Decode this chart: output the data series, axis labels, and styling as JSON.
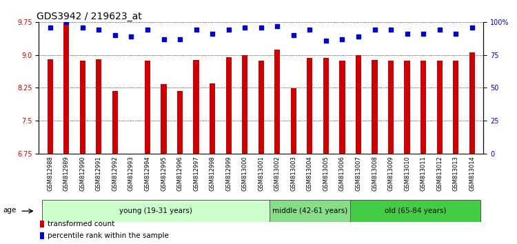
{
  "title": "GDS3942 / 219623_at",
  "samples": [
    "GSM812988",
    "GSM812989",
    "GSM812990",
    "GSM812991",
    "GSM812992",
    "GSM812993",
    "GSM812994",
    "GSM812995",
    "GSM812996",
    "GSM812997",
    "GSM812998",
    "GSM812999",
    "GSM813000",
    "GSM813001",
    "GSM813002",
    "GSM813003",
    "GSM813004",
    "GSM813005",
    "GSM813006",
    "GSM813007",
    "GSM813008",
    "GSM813009",
    "GSM813010",
    "GSM813011",
    "GSM813012",
    "GSM813013",
    "GSM813014"
  ],
  "bar_values": [
    8.9,
    9.73,
    8.87,
    8.9,
    8.18,
    6.75,
    8.87,
    8.33,
    8.18,
    8.88,
    8.35,
    8.95,
    9.0,
    8.87,
    9.12,
    8.24,
    8.93,
    8.93,
    8.87,
    9.0,
    8.88,
    8.87,
    8.87,
    8.87,
    8.87,
    8.87,
    9.05
  ],
  "percentile_values": [
    96,
    100,
    96,
    94,
    90,
    89,
    94,
    87,
    87,
    94,
    91,
    94,
    96,
    96,
    97,
    90,
    94,
    86,
    87,
    89,
    94,
    94,
    91,
    91,
    94,
    91,
    96
  ],
  "bar_color": "#cc0000",
  "percentile_color": "#0000cc",
  "baseline": 6.75,
  "ylim_left": [
    6.75,
    9.75
  ],
  "ylim_right": [
    0,
    100
  ],
  "yticks_left": [
    6.75,
    7.5,
    8.25,
    9.0,
    9.75
  ],
  "yticks_right": [
    0,
    25,
    50,
    75,
    100
  ],
  "ytick_labels_right": [
    "0",
    "25",
    "50",
    "75",
    "100%"
  ],
  "groups": [
    {
      "label": "young (19-31 years)",
      "start": 0,
      "end": 14,
      "color": "#ccffcc"
    },
    {
      "label": "middle (42-61 years)",
      "start": 14,
      "end": 19,
      "color": "#88dd88"
    },
    {
      "label": "old (65-84 years)",
      "start": 19,
      "end": 27,
      "color": "#44cc44"
    }
  ],
  "age_label": "age",
  "legend_bar_label": "transformed count",
  "legend_percentile_label": "percentile rank within the sample",
  "title_fontsize": 10,
  "tick_fontsize": 7,
  "bar_width": 0.35
}
